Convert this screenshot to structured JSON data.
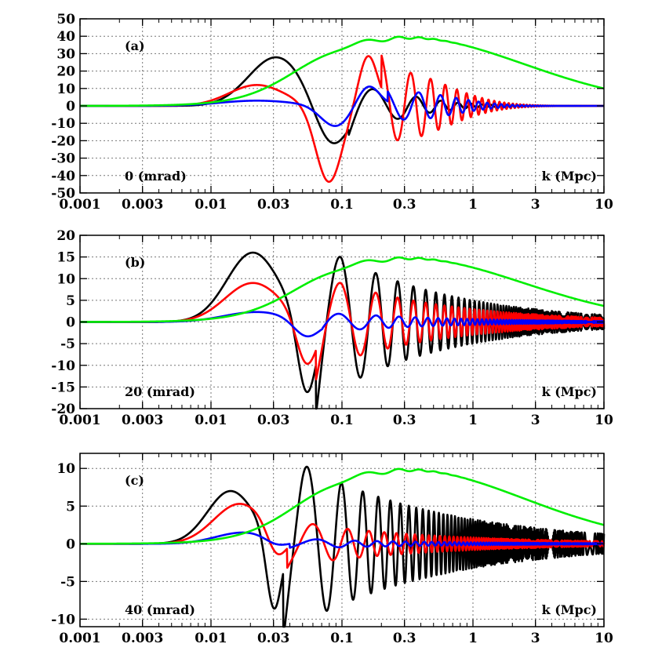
{
  "chart_data": [
    {
      "type": "line",
      "panel_label": "(a)",
      "angle_label": "0 (mrad)",
      "xlabel": "k (Mpc)",
      "xscale": "log",
      "xlim": [
        0.001,
        10
      ],
      "ylim": [
        -50,
        50
      ],
      "grid": true,
      "x_tick_labels": [
        "0.001",
        "0.003",
        "0.01",
        "0.03",
        "0.1",
        "0.3",
        "1",
        "3",
        "10"
      ],
      "y_tick_labels": [
        "50",
        "40",
        "30",
        "20",
        "10",
        "0",
        "-10",
        "-20",
        "-30",
        "-40",
        "-50"
      ],
      "series": [
        {
          "name": "black",
          "color": "#000000",
          "envelope_peak": 28,
          "peak_k": 0.035
        },
        {
          "name": "red",
          "color": "#ff0000",
          "envelope_peak": 44,
          "peak_k": 0.08
        },
        {
          "name": "blue",
          "color": "#0000ff",
          "envelope_peak": 13,
          "peak_k": 0.09
        },
        {
          "name": "green",
          "color": "#00ee00",
          "plateau": 40,
          "end_value": 10
        }
      ]
    },
    {
      "type": "line",
      "panel_label": "(b)",
      "angle_label": "20 (mrad)",
      "xlabel": "k (Mpc)",
      "xscale": "log",
      "xlim": [
        0.001,
        10
      ],
      "ylim": [
        -20,
        20
      ],
      "grid": true,
      "x_tick_labels": [
        "0.001",
        "0.003",
        "0.01",
        "0.03",
        "0.1",
        "0.3",
        "1",
        "3",
        "10"
      ],
      "y_tick_labels": [
        "20",
        "15",
        "10",
        "5",
        "0",
        "-5",
        "-10",
        "-15",
        "-20"
      ],
      "series": [
        {
          "name": "black",
          "color": "#000000",
          "envelope_peak": 18,
          "peak_k": 0.05
        },
        {
          "name": "red",
          "color": "#ff0000",
          "envelope_peak": 11,
          "peak_k": 0.05
        },
        {
          "name": "blue",
          "color": "#0000ff",
          "envelope_peak": 4,
          "peak_k": 0.05
        },
        {
          "name": "green",
          "color": "#00ee00",
          "plateau": 15,
          "end_value": 3.7
        }
      ]
    },
    {
      "type": "line",
      "panel_label": "(c)",
      "angle_label": "40 (mrad)",
      "xlabel": "k (Mpc)",
      "xscale": "log",
      "xlim": [
        0.001,
        10
      ],
      "ylim": [
        -11,
        12
      ],
      "grid": true,
      "x_tick_labels": [
        "0.001",
        "0.003",
        "0.01",
        "0.03",
        "0.1",
        "0.3",
        "1",
        "3",
        "10"
      ],
      "y_tick_labels": [
        "10",
        "5",
        "0",
        "-5",
        "-10"
      ],
      "series": [
        {
          "name": "black",
          "color": "#000000",
          "envelope_peak": 10.5,
          "peak_k": 0.03
        },
        {
          "name": "red",
          "color": "#ff0000",
          "envelope_peak": 5.3,
          "peak_k": 0.016
        },
        {
          "name": "blue",
          "color": "#0000ff",
          "envelope_peak": 1.5,
          "peak_k": 0.016
        },
        {
          "name": "green",
          "color": "#00ee00",
          "plateau": 10,
          "end_value": 2.5
        }
      ]
    }
  ]
}
